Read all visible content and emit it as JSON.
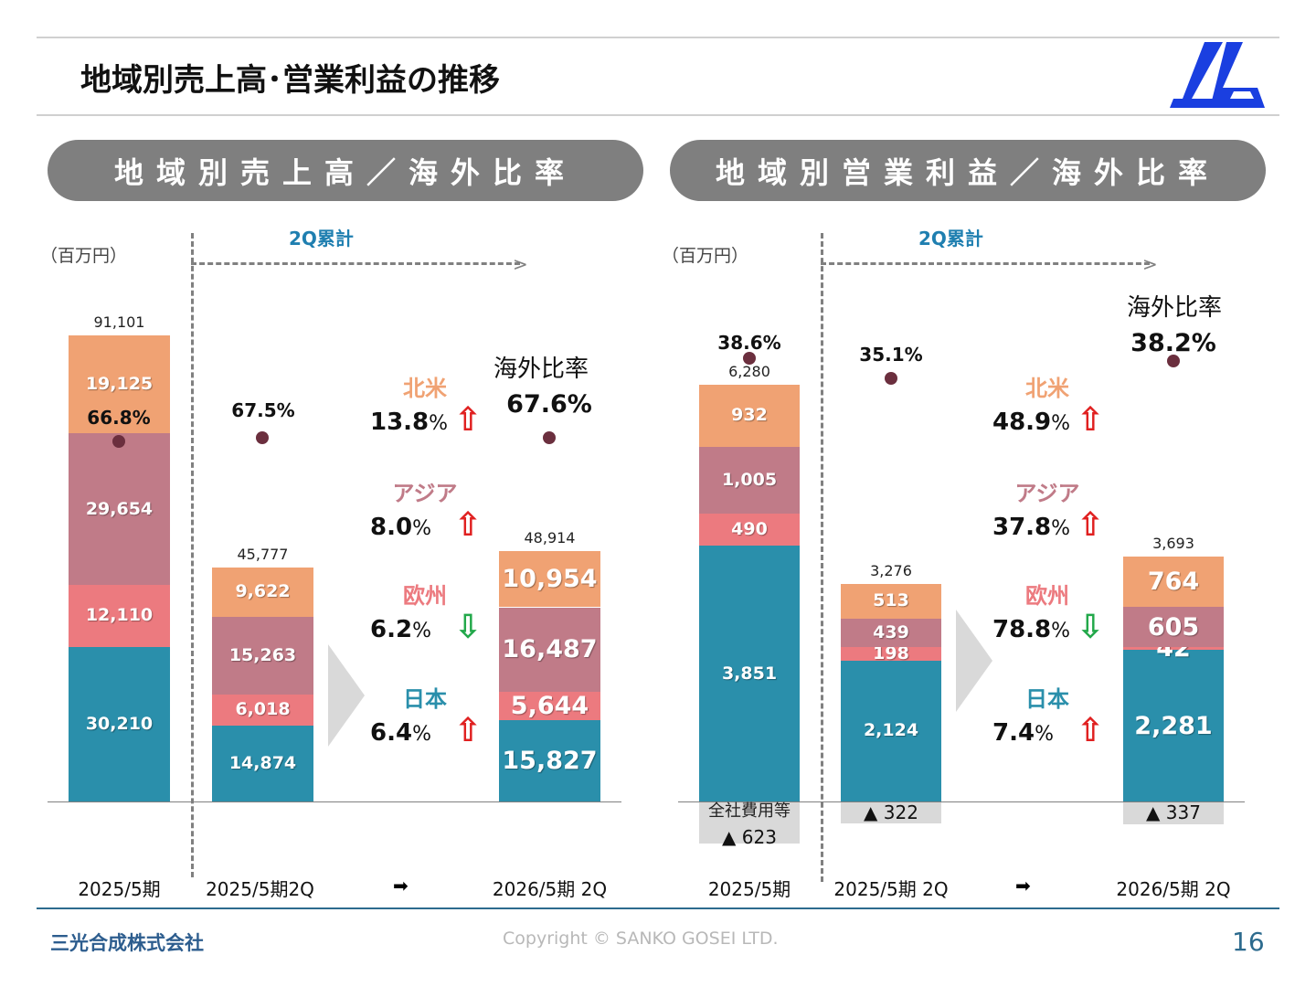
{
  "header": {
    "title": "地域別売上高･営業利益の推移",
    "logo_text": "JLG"
  },
  "footer": {
    "company": "三光合成株式会社",
    "copyright": "Copyright © SANKO GOSEI LTD.",
    "page": "16"
  },
  "colors": {
    "north_america": "#f0a273",
    "asia": "#c07b88",
    "europe": "#ec7a7f",
    "japan": "#2a8fab",
    "ratio_dot": "#6b2f3e",
    "up": "#e02020",
    "down": "#22a84a"
  },
  "chart_data": [
    {
      "type": "bar",
      "stacked": true,
      "title": "地域別売上高／海外比率",
      "unit": "（百万円）",
      "period_label": "2Q累計",
      "categories": [
        "2025/5期",
        "2025/5期2Q",
        "2026/5期 2Q"
      ],
      "series": [
        {
          "name": "日本",
          "values": [
            30210,
            14874,
            15827
          ]
        },
        {
          "name": "欧州",
          "values": [
            12110,
            6018,
            5644
          ]
        },
        {
          "name": "アジア",
          "values": [
            29654,
            15263,
            16487
          ]
        },
        {
          "name": "北米",
          "values": [
            19125,
            9622,
            10954
          ]
        }
      ],
      "totals": [
        "91,101",
        "45,777",
        "48,914"
      ],
      "overseas_ratio": [
        "66.8%",
        "67.5%",
        "67.6%"
      ],
      "overseas_ratio_label": "海外比率",
      "arrow_label": "➡",
      "growth": [
        {
          "region": "北米",
          "rate": "13.8",
          "dir": "up"
        },
        {
          "region": "アジア",
          "rate": "8.0",
          "dir": "up"
        },
        {
          "region": "欧州",
          "rate": "6.2",
          "dir": "down"
        },
        {
          "region": "日本",
          "rate": "6.4",
          "dir": "up"
        }
      ]
    },
    {
      "type": "bar",
      "stacked": true,
      "title": "地域別営業利益／海外比率",
      "unit": "（百万円）",
      "period_label": "2Q累計",
      "categories": [
        "2025/5期",
        "2025/5期 2Q",
        "2026/5期 2Q"
      ],
      "series": [
        {
          "name": "日本",
          "values": [
            3851,
            2124,
            2281
          ]
        },
        {
          "name": "欧州",
          "values": [
            490,
            198,
            42
          ]
        },
        {
          "name": "アジア",
          "values": [
            1005,
            439,
            605
          ]
        },
        {
          "name": "北米",
          "values": [
            932,
            513,
            764
          ]
        }
      ],
      "totals": [
        "6,280",
        "3,276",
        "3,693"
      ],
      "corporate_costs_label": "全社費用等",
      "corporate_costs": [
        -623,
        -322,
        -337
      ],
      "corporate_costs_text": [
        "▲ 623",
        "▲ 322",
        "▲ 337"
      ],
      "overseas_ratio": [
        "38.6%",
        "35.1%",
        "38.2%"
      ],
      "overseas_ratio_label": "海外比率",
      "arrow_label": "➡",
      "growth": [
        {
          "region": "北米",
          "rate": "48.9",
          "dir": "up"
        },
        {
          "region": "アジア",
          "rate": "37.8",
          "dir": "up"
        },
        {
          "region": "欧州",
          "rate": "78.8",
          "dir": "down"
        },
        {
          "region": "日本",
          "rate": "7.4",
          "dir": "up"
        }
      ]
    }
  ]
}
